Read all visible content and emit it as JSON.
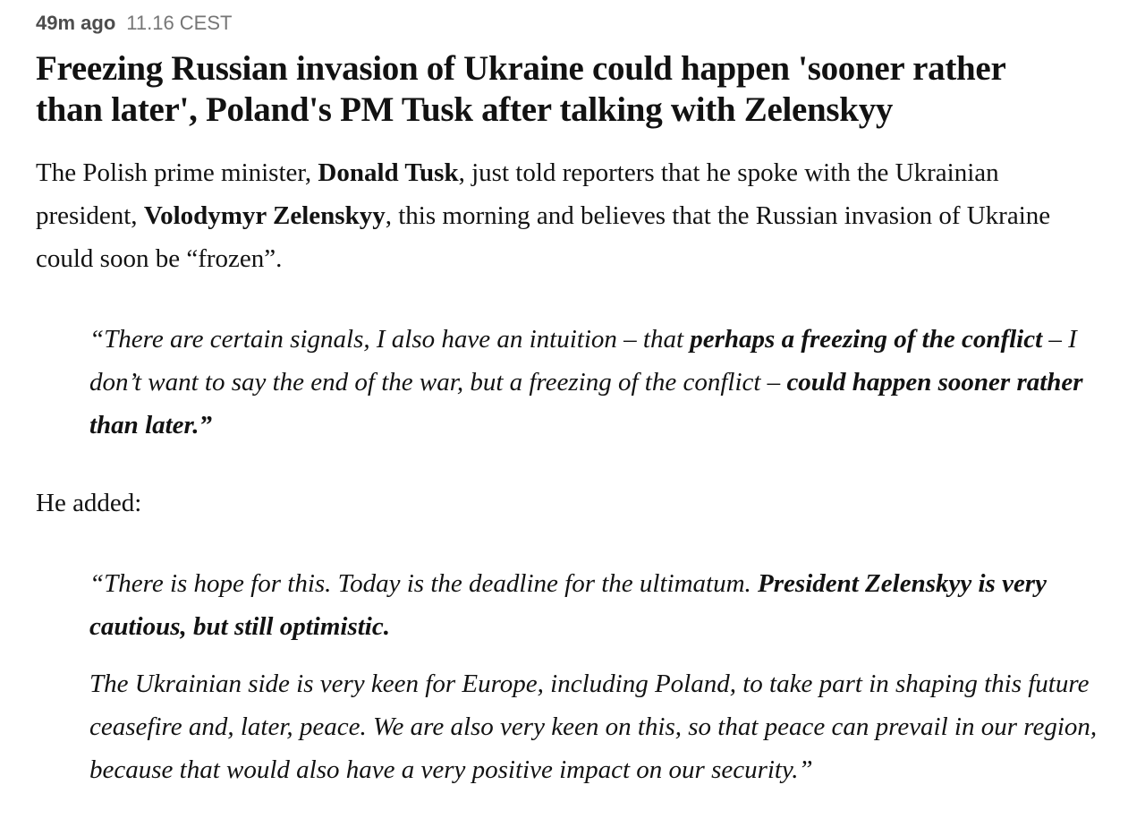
{
  "colors": {
    "text": "#121212",
    "timestamp_relative": "#4d4d4d",
    "timestamp_absolute": "#767676",
    "background": "#ffffff"
  },
  "post": {
    "time_relative": "49m ago",
    "time_absolute": "11.16 CEST",
    "headline": "Freezing Russian invasion of Ukraine could happen 'sooner rather than later', Poland's PM Tusk after talking with Zelenskyy",
    "lede": {
      "seg1": "The Polish prime minister, ",
      "seg2_bold": "Donald Tusk",
      "seg3": ", just told reporters that he spoke with the Ukrainian president, ",
      "seg4_bold": "Volodymyr Zelenskyy",
      "seg5": ", this morning and believes that the Russian invasion of Ukraine could soon be “frozen”."
    },
    "quote1": {
      "seg1": "“There are certain signals, I also have an intuition – that ",
      "seg2_bold": "perhaps a freezing of the conflict",
      "seg3": " – I don’t want to say the end of the war, but a freezing of the conflict – ",
      "seg4_bold": "could happen sooner rather than later.”"
    },
    "he_added": "He added:",
    "quote2": {
      "p1_seg1": "“There is hope for this. Today is the deadline for the ultimatum. ",
      "p1_seg2_bold": "President Zelenskyy is very cautious, but still optimistic.",
      "p2": "The Ukrainian side is very keen for Europe, including Poland, to take part in shaping this future ceasefire and, later, peace. We are also very keen on this, so that peace can prevail in our region, because that would also have a very positive impact on our security.”"
    }
  }
}
